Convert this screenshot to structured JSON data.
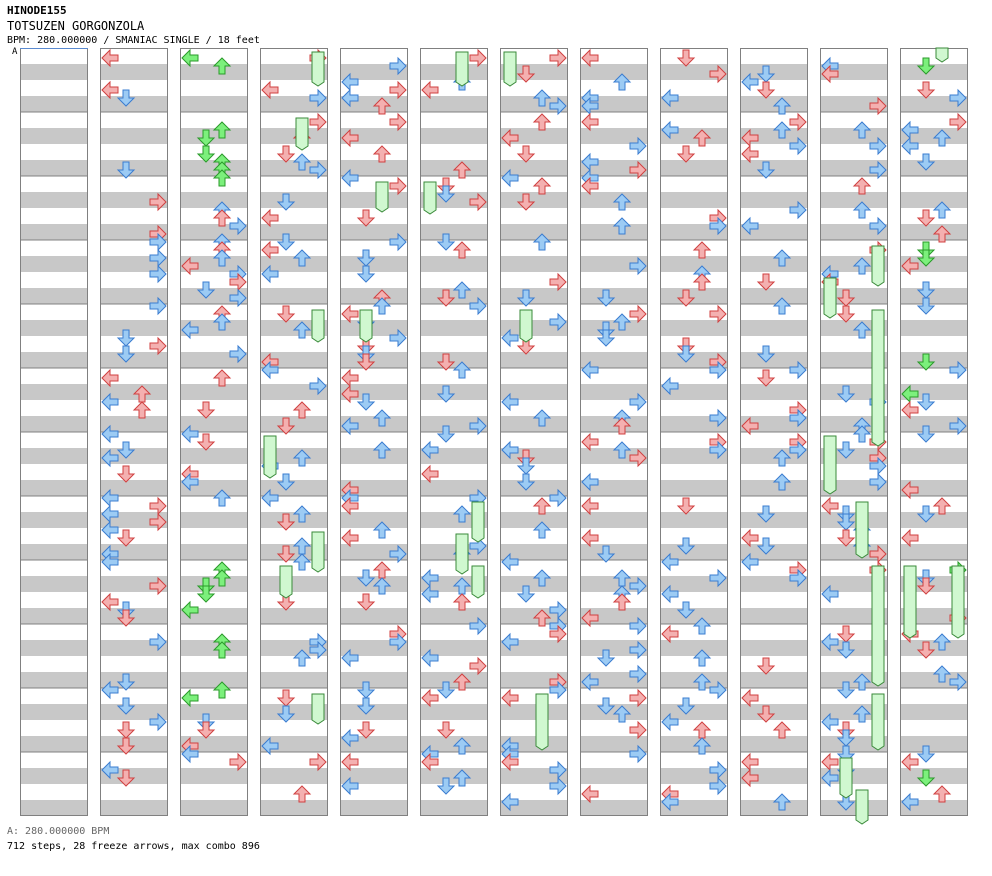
{
  "header": {
    "song_id": "HINODE155",
    "title": "TOTSUZEN GORGONZOLA",
    "info": "BPM: 280.000000 / SMANIAC SINGLE / 18 feet"
  },
  "bpm_marker": "A",
  "footer": {
    "bpm_line": "A: 280.000000 BPM",
    "stats": "712 steps, 28 freeze arrows, max combo 896"
  },
  "colors": {
    "red_arrow": "#f4b0b0",
    "red_stroke": "#d04040",
    "blue_arrow": "#9ccbf4",
    "blue_stroke": "#3a7cd0",
    "green_arrow": "#7cf07c",
    "green_stroke": "#2a9a2a",
    "freeze_fill": "#d0f8d0",
    "freeze_stroke": "#3a8a3a",
    "stripe": "#c8c8c8"
  },
  "icons": [
    "left-arrow-icon",
    "down-arrow-icon",
    "up-arrow-icon",
    "right-arrow-icon"
  ]
}
